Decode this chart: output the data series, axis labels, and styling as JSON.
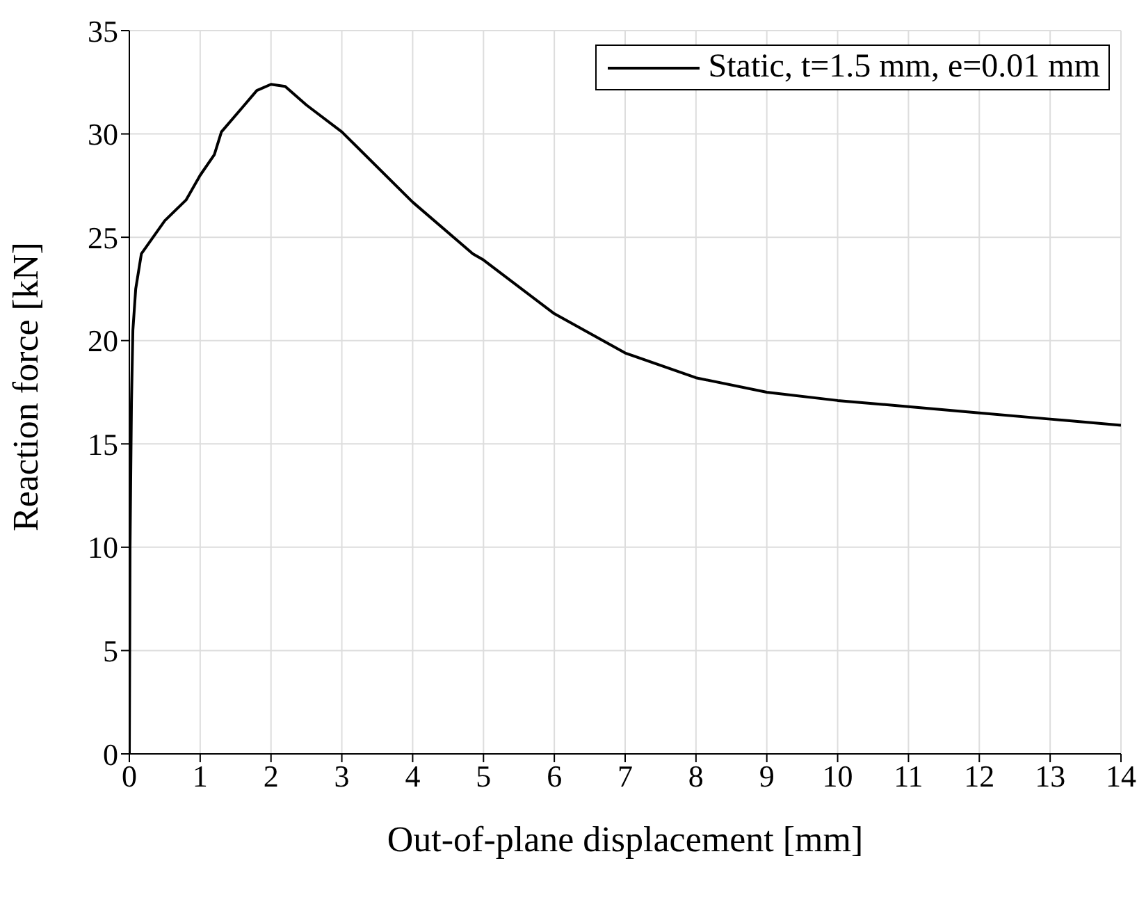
{
  "chart_data": {
    "type": "line",
    "xlabel": "Out-of-plane displacement [mm]",
    "ylabel": "Reaction force [kN]",
    "xlim": [
      0,
      14
    ],
    "xticks": [
      0,
      1,
      2,
      3,
      4,
      5,
      6,
      7,
      8,
      9,
      10,
      11,
      12,
      13,
      14
    ],
    "ylim": [
      0,
      35
    ],
    "yticks": [
      0,
      5,
      10,
      15,
      20,
      25,
      30,
      35
    ],
    "grid": true,
    "legend": "top right",
    "marker": "none",
    "line_style": "solid",
    "series": [
      {
        "name": "Static, t=1.5 mm, e=0.01 mm",
        "color": "#000000",
        "x": [
          0,
          0.01,
          0.03,
          0.05,
          0.09,
          0.17,
          0.5,
          0.8,
          1,
          1.2,
          1.3,
          1.6,
          1.8,
          2,
          2.2,
          2.5,
          3,
          4,
          4.85,
          5,
          6,
          7,
          8,
          9,
          10,
          11,
          12,
          13,
          14
        ],
        "values": [
          0,
          10,
          17,
          20.5,
          22.5,
          24.2,
          25.8,
          26.8,
          28,
          29,
          30.1,
          31.3,
          32.1,
          32.4,
          32.3,
          31.4,
          30.1,
          26.7,
          24.2,
          23.9,
          21.3,
          19.4,
          18.2,
          17.5,
          17.1,
          16.8,
          16.5,
          16.2,
          15.9
        ]
      }
    ]
  }
}
